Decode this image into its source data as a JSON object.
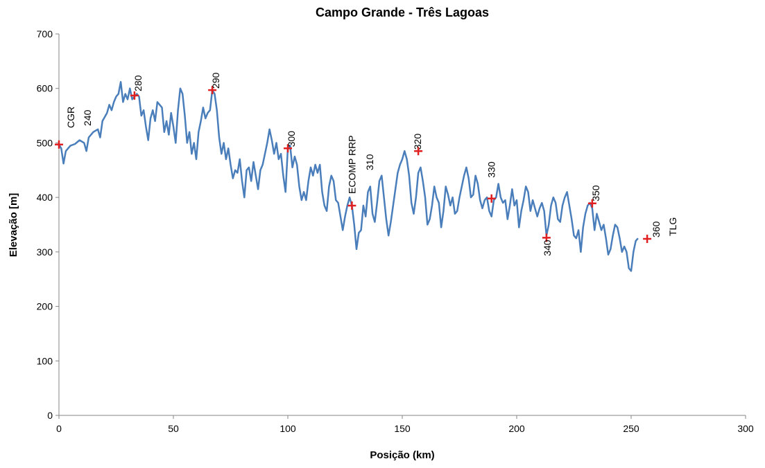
{
  "chart_data": {
    "type": "line",
    "title": "Campo Grande - Três Lagoas",
    "xlabel": "Posição (km)",
    "ylabel": "Elevação [m]",
    "xlim": [
      0,
      300
    ],
    "xticks": [
      0,
      50,
      100,
      150,
      200,
      250,
      300
    ],
    "ylim": [
      0,
      700
    ],
    "yticks": [
      0,
      100,
      200,
      300,
      400,
      500,
      600,
      700
    ],
    "grid": false,
    "series": [
      {
        "color": "#4a7ebb",
        "x": [
          0,
          1,
          2,
          3,
          5,
          7,
          9,
          11,
          12,
          13,
          15,
          17,
          18,
          19,
          21,
          22,
          23,
          24,
          25,
          26,
          27,
          28,
          29,
          30,
          31,
          32,
          33,
          34,
          35,
          36,
          37,
          38,
          39,
          40,
          41,
          42,
          43,
          44,
          45,
          46,
          47,
          48,
          49,
          50,
          51,
          52,
          53,
          54,
          55,
          56,
          57,
          58,
          59,
          60,
          61,
          62,
          63,
          64,
          65,
          66,
          67,
          68,
          69,
          70,
          71,
          72,
          73,
          74,
          75,
          76,
          77,
          78,
          79,
          80,
          81,
          82,
          83,
          84,
          85,
          86,
          87,
          88,
          89,
          90,
          91,
          92,
          93,
          94,
          95,
          96,
          97,
          98,
          99,
          100,
          101,
          102,
          103,
          104,
          105,
          106,
          107,
          108,
          109,
          110,
          111,
          112,
          113,
          114,
          115,
          116,
          117,
          118,
          119,
          120,
          121,
          122,
          123,
          124,
          125,
          126,
          127,
          128,
          129,
          130,
          131,
          132,
          133,
          134,
          135,
          136,
          137,
          138,
          139,
          140,
          141,
          142,
          143,
          144,
          145,
          146,
          147,
          148,
          149,
          150,
          151,
          152,
          153,
          154,
          155,
          156,
          157,
          158,
          159,
          160,
          161,
          162,
          163,
          164,
          165,
          166,
          167,
          168,
          169,
          170,
          171,
          172,
          173,
          174,
          175,
          176,
          177,
          178,
          179,
          180,
          181,
          182,
          183,
          184,
          185,
          186,
          187,
          188,
          189,
          190,
          191,
          192,
          193,
          194,
          195,
          196,
          197,
          198,
          199,
          200,
          201,
          202,
          203,
          204,
          205,
          206,
          207,
          208,
          209,
          210,
          211,
          212,
          213,
          214,
          215,
          216,
          217,
          218,
          219,
          220,
          221,
          222,
          223,
          224,
          225,
          226,
          227,
          228,
          229,
          230,
          231,
          232,
          233,
          234,
          235,
          236,
          237,
          238,
          239,
          240,
          241,
          242,
          243,
          244,
          245,
          246,
          247,
          248,
          249,
          250,
          251,
          252,
          253
        ],
        "values": [
          497,
          490,
          462,
          485,
          495,
          498,
          505,
          500,
          485,
          510,
          520,
          525,
          510,
          540,
          555,
          570,
          560,
          575,
          585,
          590,
          612,
          575,
          590,
          580,
          600,
          580,
          585,
          590,
          585,
          550,
          560,
          530,
          505,
          545,
          560,
          540,
          575,
          570,
          565,
          520,
          540,
          515,
          555,
          530,
          500,
          560,
          600,
          590,
          550,
          500,
          520,
          480,
          500,
          470,
          520,
          540,
          565,
          545,
          555,
          560,
          597,
          590,
          560,
          510,
          480,
          500,
          470,
          490,
          460,
          435,
          450,
          445,
          470,
          430,
          400,
          450,
          455,
          430,
          465,
          440,
          415,
          450,
          460,
          480,
          500,
          525,
          505,
          480,
          500,
          470,
          480,
          440,
          410,
          490,
          495,
          455,
          475,
          460,
          420,
          395,
          410,
          395,
          430,
          455,
          440,
          460,
          445,
          460,
          410,
          385,
          375,
          420,
          440,
          430,
          395,
          390,
          365,
          340,
          365,
          385,
          400,
          385,
          350,
          305,
          335,
          340,
          385,
          365,
          410,
          420,
          370,
          355,
          390,
          430,
          440,
          400,
          360,
          330,
          355,
          385,
          415,
          445,
          460,
          470,
          485,
          470,
          440,
          390,
          370,
          400,
          445,
          455,
          430,
          400,
          350,
          360,
          385,
          420,
          400,
          390,
          345,
          375,
          420,
          405,
          385,
          400,
          370,
          375,
          400,
          420,
          440,
          455,
          435,
          400,
          405,
          440,
          425,
          395,
          380,
          395,
          400,
          375,
          365,
          395,
          400,
          425,
          400,
          390,
          395,
          360,
          385,
          415,
          385,
          395,
          345,
          375,
          395,
          420,
          410,
          375,
          395,
          380,
          365,
          380,
          390,
          375,
          330,
          350,
          385,
          400,
          390,
          360,
          355,
          385,
          400,
          410,
          385,
          360,
          330,
          325,
          340,
          300,
          345,
          370,
          385,
          390,
          380,
          340,
          370,
          355,
          340,
          350,
          325,
          295,
          305,
          330,
          350,
          345,
          325,
          300,
          310,
          300,
          270,
          265,
          300,
          320,
          325
        ]
      },
      {
        "type": "scatter",
        "color": "#e02020",
        "x": [
          0,
          33,
          67,
          100,
          128,
          157,
          189,
          213,
          233,
          257
        ],
        "values": [
          497,
          587,
          597,
          490,
          385,
          485,
          398,
          326,
          389,
          324
        ],
        "labels": [
          null,
          "280",
          "290",
          "300",
          "ECOMP RRP",
          "320",
          "330",
          "340",
          "350",
          "360"
        ]
      }
    ],
    "annotations": [
      "CGR",
      "240",
      "310",
      "TLG"
    ]
  }
}
